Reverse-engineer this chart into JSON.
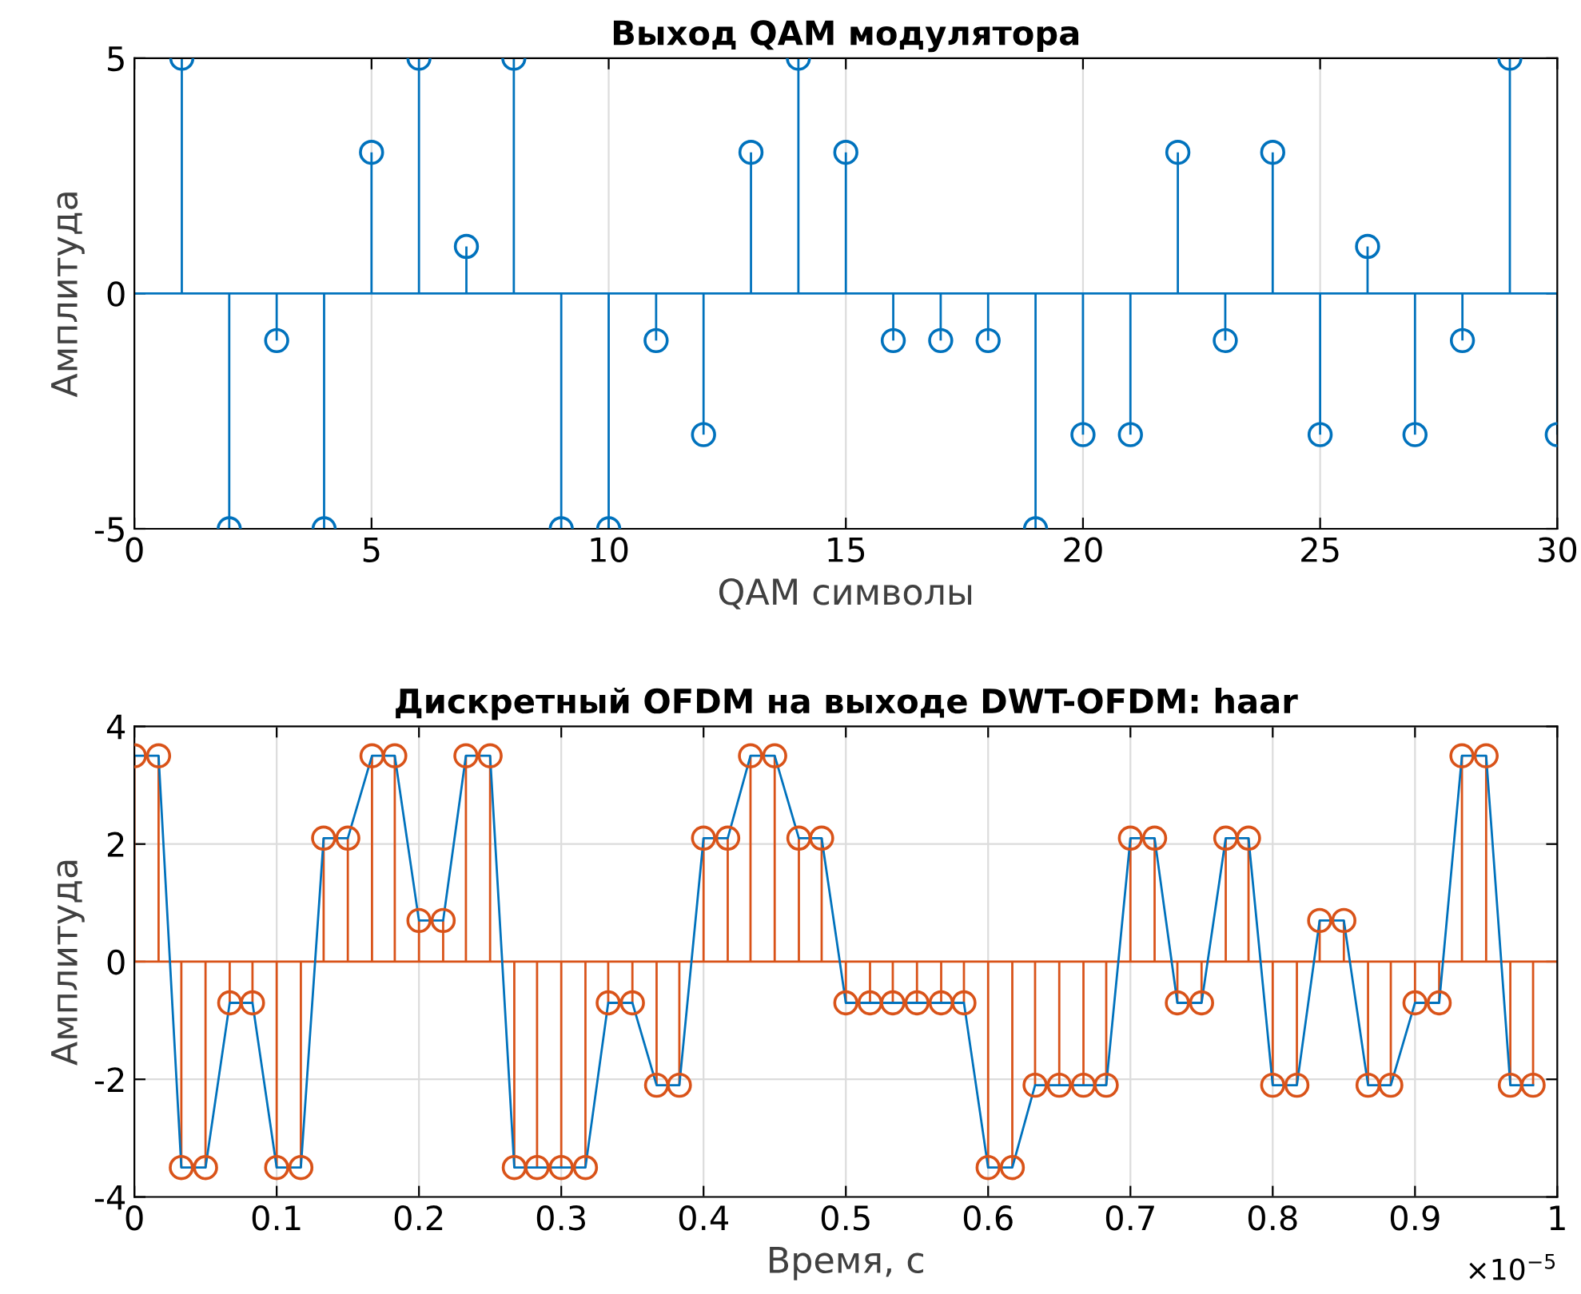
{
  "chart_data": [
    {
      "type": "lollipop",
      "title": "Выход QAM модулятора",
      "xlabel": "QAM символы",
      "ylabel": "Амплитуда",
      "x": [
        1,
        2,
        3,
        4,
        5,
        6,
        7,
        8,
        9,
        10,
        11,
        12,
        13,
        14,
        15,
        16,
        17,
        18,
        19,
        20,
        21,
        22,
        23,
        24,
        25,
        26,
        27,
        28,
        29,
        30
      ],
      "series": [
        {
          "color": "#0072bd",
          "values": [
            5,
            -5,
            -1,
            -5,
            3,
            5,
            1,
            5,
            -5,
            -5,
            -1,
            -3,
            3,
            5,
            3,
            -1,
            -1,
            -1,
            -5,
            -3,
            -3,
            3,
            -1,
            3,
            -3,
            1,
            -3,
            -1,
            5,
            -3
          ]
        }
      ],
      "ref_lines": [
        {
          "axis": "y",
          "value": 0,
          "color": "#0072bd"
        }
      ],
      "xlim": [
        0,
        30
      ],
      "xticks": [
        0,
        5,
        10,
        15,
        20,
        25,
        30
      ],
      "ylim": [
        -5,
        5
      ],
      "yticks": [
        -5,
        0,
        5
      ],
      "grid": "x",
      "marker": "circle"
    },
    {
      "type": "lollipop",
      "title": "Дискретный OFDM на выходе DWT-OFDM: haar",
      "xlabel": "Время, с",
      "ylabel": "Амплитуда",
      "annotations": [
        "×10$^{−5}$"
      ],
      "x": [
        0,
        0.017,
        0.033,
        0.05,
        0.067,
        0.083,
        0.1,
        0.117,
        0.133,
        0.15,
        0.167,
        0.183,
        0.2,
        0.217,
        0.233,
        0.25,
        0.267,
        0.283,
        0.3,
        0.317,
        0.333,
        0.35,
        0.367,
        0.383,
        0.4,
        0.417,
        0.433,
        0.45,
        0.467,
        0.483,
        0.5,
        0.517,
        0.533,
        0.55,
        0.567,
        0.583,
        0.6,
        0.617,
        0.633,
        0.65,
        0.667,
        0.683,
        0.7,
        0.717,
        0.733,
        0.75,
        0.767,
        0.783,
        0.8,
        0.817,
        0.833,
        0.85,
        0.867,
        0.883,
        0.9,
        0.917,
        0.933,
        0.95,
        0.967,
        0.983
      ],
      "series": [
        {
          "type": "line",
          "color": "#0072bd",
          "marker": "none",
          "values": [
            3.5,
            3.5,
            -3.5,
            -3.5,
            -0.7,
            -0.7,
            -3.5,
            -3.5,
            2.1,
            2.1,
            3.5,
            3.5,
            0.7,
            0.7,
            3.5,
            3.5,
            -3.5,
            -3.5,
            -3.5,
            -3.5,
            -0.7,
            -0.7,
            -2.1,
            -2.1,
            2.1,
            2.1,
            3.5,
            3.5,
            2.1,
            2.1,
            -0.7,
            -0.7,
            -0.7,
            -0.7,
            -0.7,
            -0.7,
            -3.5,
            -3.5,
            -2.1,
            -2.1,
            -2.1,
            -2.1,
            2.1,
            2.1,
            -0.7,
            -0.7,
            2.1,
            2.1,
            -2.1,
            -2.1,
            0.7,
            0.7,
            -2.1,
            -2.1,
            -0.7,
            -0.7,
            3.5,
            3.5,
            -2.1,
            -2.1
          ]
        },
        {
          "type": "lollipop",
          "color": "#d95319",
          "marker": "circle",
          "values": [
            3.5,
            3.5,
            -3.5,
            -3.5,
            -0.7,
            -0.7,
            -3.5,
            -3.5,
            2.1,
            2.1,
            3.5,
            3.5,
            0.7,
            0.7,
            3.5,
            3.5,
            -3.5,
            -3.5,
            -3.5,
            -3.5,
            -0.7,
            -0.7,
            -2.1,
            -2.1,
            2.1,
            2.1,
            3.5,
            3.5,
            2.1,
            2.1,
            -0.7,
            -0.7,
            -0.7,
            -0.7,
            -0.7,
            -0.7,
            -3.5,
            -3.5,
            -2.1,
            -2.1,
            -2.1,
            -2.1,
            2.1,
            2.1,
            -0.7,
            -0.7,
            2.1,
            2.1,
            -2.1,
            -2.1,
            0.7,
            0.7,
            -2.1,
            -2.1,
            -0.7,
            -0.7,
            3.5,
            3.5,
            -2.1,
            -2.1
          ]
        }
      ],
      "ref_lines": [
        {
          "axis": "y",
          "value": 0,
          "color": "#d95319"
        }
      ],
      "xlim": [
        0,
        1
      ],
      "xticks": [
        0,
        0.1,
        0.2,
        0.3,
        0.4,
        0.5,
        0.6,
        0.7,
        0.8,
        0.9,
        1
      ],
      "ylim": [
        -4,
        4
      ],
      "yticks": [
        -4,
        -2,
        0,
        2,
        4
      ],
      "grid": true
    }
  ]
}
